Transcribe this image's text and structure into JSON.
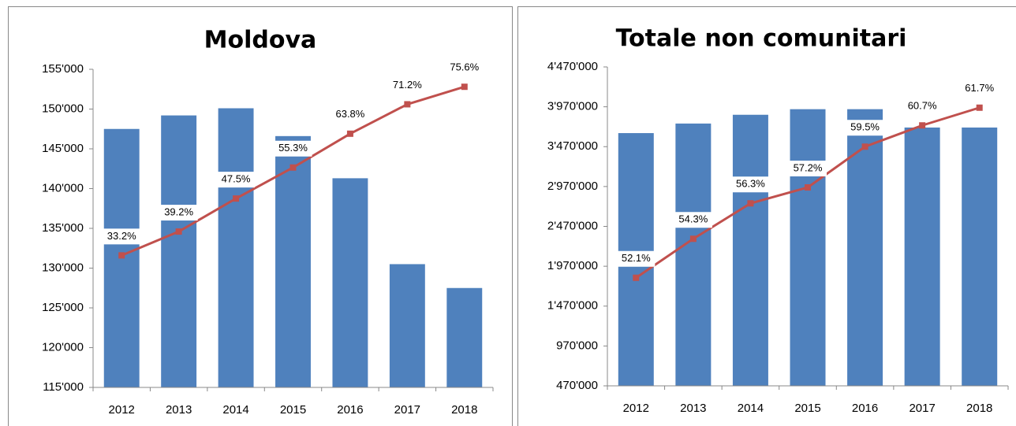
{
  "chart_data": [
    {
      "type": "combo",
      "title": "Moldova",
      "categories": [
        "2012",
        "2013",
        "2014",
        "2015",
        "2016",
        "2017",
        "2018"
      ],
      "series": [
        {
          "type": "bar",
          "color": "#4f81bd",
          "values": [
            147500,
            149200,
            150100,
            146600,
            141300,
            130500,
            127500
          ]
        },
        {
          "type": "line",
          "axis": "y2",
          "color": "#c0504d",
          "values": [
            33.2,
            39.2,
            47.5,
            55.3,
            63.8,
            71.2,
            75.6
          ],
          "value_labels": [
            "33.2%",
            "39.2%",
            "47.5%",
            "55.3%",
            "63.8%",
            "71.2%",
            "75.6%"
          ]
        }
      ],
      "ylim": [
        115000,
        155000
      ],
      "yticks": [
        {
          "value": 115000,
          "label": "115'000"
        },
        {
          "value": 120000,
          "label": "120'000"
        },
        {
          "value": 125000,
          "label": "125'000"
        },
        {
          "value": 130000,
          "label": "130'000"
        },
        {
          "value": 135000,
          "label": "135'000"
        },
        {
          "value": 140000,
          "label": "140'000"
        },
        {
          "value": 145000,
          "label": "145'000"
        },
        {
          "value": 150000,
          "label": "150'000"
        },
        {
          "value": 155000,
          "label": "155'000"
        }
      ],
      "y2lim": [
        0,
        80
      ]
    },
    {
      "type": "combo",
      "title": "Totale non comunitari",
      "categories": [
        "2012",
        "2013",
        "2014",
        "2015",
        "2016",
        "2017",
        "2018"
      ],
      "series": [
        {
          "type": "bar",
          "color": "#4f81bd",
          "values": [
            3640000,
            3760000,
            3870000,
            3940000,
            3940000,
            3710000,
            3710000
          ]
        },
        {
          "type": "line",
          "axis": "y2",
          "color": "#c0504d",
          "values": [
            52.1,
            54.3,
            56.3,
            57.2,
            59.5,
            60.7,
            61.7
          ],
          "value_labels": [
            "52.1%",
            "54.3%",
            "56.3%",
            "57.2%",
            "59.5%",
            "60.7%",
            "61.7%"
          ]
        }
      ],
      "ylim": [
        470000,
        4470000
      ],
      "yticks": [
        {
          "value": 470000,
          "label": "470'000"
        },
        {
          "value": 970000,
          "label": "970'000"
        },
        {
          "value": 1470000,
          "label": "1'470'000"
        },
        {
          "value": 1970000,
          "label": "1'970'000"
        },
        {
          "value": 2470000,
          "label": "2'470'000"
        },
        {
          "value": 2970000,
          "label": "2'970'000"
        },
        {
          "value": 3470000,
          "label": "3'470'000"
        },
        {
          "value": 3970000,
          "label": "3'970'000"
        },
        {
          "value": 4470000,
          "label": "4'470'000"
        }
      ],
      "y2lim": [
        46,
        64
      ]
    }
  ]
}
